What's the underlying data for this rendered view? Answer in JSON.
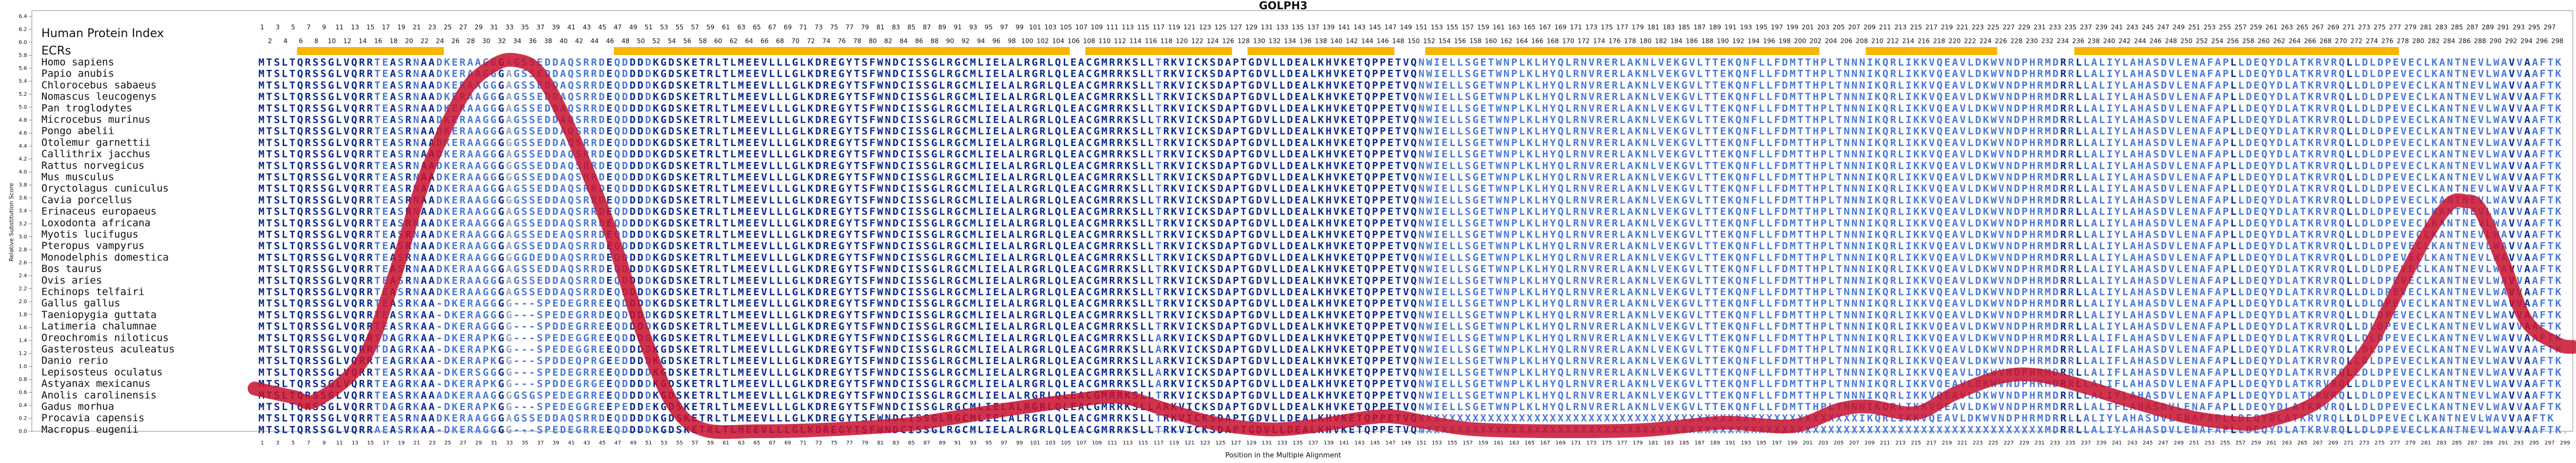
{
  "chart_data": {
    "type": "line",
    "title": "GOLPH3",
    "y_label": "Relative Substitution Score",
    "x_label": "Position in the Multiple Alignment",
    "color": "#c8102e",
    "xlim": [
      0,
      300
    ],
    "ylim": [
      0,
      6.4
    ],
    "x": [
      0,
      5,
      8,
      14,
      18,
      22,
      27,
      31,
      34,
      37,
      41,
      46,
      50,
      54,
      58,
      65,
      73,
      84,
      90,
      97,
      105,
      112,
      118,
      124,
      131,
      137,
      146,
      152,
      158,
      169,
      180,
      190,
      199,
      205,
      209,
      215,
      220,
      226,
      231,
      237,
      243,
      250,
      256,
      260,
      267,
      273,
      277,
      281,
      284,
      286,
      288,
      291,
      294,
      298,
      300
    ],
    "values": [
      0.66,
      0.53,
      0.48,
      1.1,
      2.35,
      3.9,
      5.2,
      5.65,
      5.72,
      5.5,
      4.6,
      3.1,
      1.6,
      0.45,
      0.03,
      0,
      0.02,
      0.1,
      0.2,
      0.33,
      0.46,
      0.53,
      0.33,
      0.13,
      0.03,
      0.08,
      0.23,
      0.13,
      0.03,
      0,
      0.02,
      0.13,
      0.08,
      0.33,
      0.38,
      0.28,
      0.58,
      0.84,
      0.86,
      0.68,
      0.46,
      0.23,
      0.13,
      0.15,
      0.46,
      1.2,
      2.1,
      3,
      3.5,
      3.55,
      3.42,
      2.6,
      1.7,
      1.35,
      1.3
    ],
    "yticks": [
      {
        "value": 0,
        "label": "0.0"
      },
      0.2,
      0.4,
      0.6,
      0.8,
      {
        "value": 1,
        "label": "1.0"
      },
      1.2,
      1.4,
      1.6,
      1.8,
      {
        "value": 2,
        "label": "2.0"
      },
      2.2,
      2.4,
      2.6,
      2.8,
      {
        "value": 3,
        "label": "3.0"
      },
      3.2,
      3.4,
      3.6,
      3.8,
      {
        "value": 4,
        "label": "4.0"
      },
      4.2,
      4.4,
      4.6,
      4.8,
      {
        "value": 5,
        "label": "5.0"
      },
      5.2,
      5.4,
      5.6,
      5.8,
      {
        "value": 6,
        "label": "6.0"
      },
      6.2,
      6.4
    ],
    "xticks": [
      1,
      3,
      5,
      7,
      9,
      11,
      13,
      15,
      17,
      19,
      21,
      23,
      25,
      27,
      29,
      31,
      33,
      35,
      37,
      39,
      41,
      43,
      45,
      47,
      49,
      51,
      53,
      55,
      57,
      59,
      61,
      63,
      65,
      67,
      69,
      71,
      73,
      75,
      77,
      79,
      81,
      83,
      85,
      87,
      89,
      91,
      93,
      95,
      97,
      99,
      101,
      103,
      105,
      107,
      109,
      111,
      113,
      115,
      117,
      119,
      121,
      123,
      125,
      127,
      129,
      131,
      133,
      135,
      137,
      139,
      141,
      143,
      145,
      147,
      149,
      151,
      153,
      155,
      157,
      159,
      161,
      163,
      165,
      167,
      169,
      171,
      173,
      175,
      177,
      179,
      181,
      183,
      185,
      187,
      189,
      191,
      193,
      195,
      197,
      199,
      201,
      203,
      205,
      207,
      209,
      211,
      213,
      215,
      217,
      219,
      221,
      223,
      225,
      227,
      229,
      231,
      233,
      235,
      237,
      239,
      241,
      243,
      245,
      247,
      249,
      251,
      253,
      255,
      257,
      259,
      261,
      263,
      265,
      267,
      269,
      271,
      273,
      275,
      277,
      279,
      281,
      283,
      285,
      287,
      289,
      291,
      293,
      295,
      297,
      299
    ],
    "human_index_label": "Human Protein Index",
    "human_index": [
      1,
      2,
      3,
      4,
      5,
      6,
      7,
      8,
      9,
      10,
      11,
      12,
      13,
      14,
      15,
      16,
      17,
      18,
      19,
      20,
      21,
      22,
      23,
      24,
      25,
      26,
      27,
      28,
      29,
      30,
      31,
      32,
      33,
      34,
      35,
      36,
      37,
      38,
      39,
      40,
      41,
      42,
      43,
      44,
      45,
      46,
      47,
      48,
      49,
      50,
      51,
      52,
      53,
      54,
      55,
      56,
      57,
      58,
      59,
      60,
      61,
      62,
      63,
      64,
      65,
      66,
      67,
      68,
      69,
      70,
      71,
      72,
      73,
      74,
      75,
      76,
      77,
      78,
      79,
      80,
      81,
      82,
      83,
      84,
      85,
      86,
      87,
      88,
      89,
      90,
      91,
      92,
      93,
      94,
      95,
      96,
      97,
      98,
      99,
      100,
      101,
      102,
      103,
      104,
      105,
      106,
      107,
      108,
      109,
      110,
      111,
      112,
      113,
      114,
      115,
      116,
      117,
      118,
      119,
      120,
      121,
      122,
      123,
      124,
      125,
      126,
      127,
      128,
      129,
      130,
      131,
      132,
      133,
      134,
      135,
      136,
      137,
      138,
      139,
      140,
      141,
      142,
      143,
      144,
      145,
      146,
      147,
      148,
      149,
      150,
      151,
      152,
      153,
      154,
      155,
      156,
      157,
      158,
      159,
      160,
      161,
      162,
      163,
      164,
      165,
      166,
      167,
      168,
      169,
      170,
      171,
      172,
      173,
      174,
      175,
      176,
      177,
      178,
      179,
      180,
      181,
      182,
      183,
      184,
      185,
      186,
      187,
      188,
      189,
      190,
      191,
      192,
      193,
      194,
      195,
      196,
      197,
      198,
      199,
      200,
      201,
      202,
      203,
      204,
      205,
      206,
      207,
      208,
      209,
      210,
      211,
      212,
      213,
      214,
      215,
      216,
      217,
      218,
      219,
      220,
      221,
      222,
      223,
      224,
      225,
      226,
      227,
      228,
      229,
      230,
      231,
      232,
      233,
      234,
      235,
      236,
      237,
      238,
      239,
      240,
      241,
      242,
      243,
      244,
      245,
      246,
      247,
      248,
      249,
      250,
      251,
      252,
      253,
      254,
      255,
      256,
      257,
      258,
      259,
      260,
      261,
      262,
      263,
      264,
      265,
      266,
      267,
      268,
      269,
      270,
      271,
      272,
      273,
      274,
      275,
      276,
      277,
      278,
      279,
      280,
      281,
      282,
      283,
      284,
      285,
      286,
      287,
      288,
      289,
      290,
      291,
      292,
      293,
      294,
      295,
      296,
      297,
      298
    ],
    "ecr_label": "ECRs",
    "ecr_color": "#f7b500",
    "ecrs": [
      [
        6,
        24
      ],
      [
        47,
        105
      ],
      [
        108,
        126
      ],
      [
        129,
        147
      ],
      [
        152,
        202
      ],
      [
        209,
        225
      ],
      [
        236,
        277
      ]
    ],
    "residue_colors": [
      "#0b2a8c",
      "#4a78d6",
      "#9aa4b5"
    ],
    "species": [
      "Homo sapiens",
      "Papio anubis",
      "Chlorocebus sabaeus",
      "Nomascus leucogenys",
      "Pan troglodytes",
      "Microcebus murinus",
      "Pongo abelii",
      "Otolemur garnettii",
      "Callithrix jacchus",
      "Rattus norvegicus",
      "Mus musculus",
      "Oryctolagus cuniculus",
      "Cavia porcellus",
      "Erinaceus europaeus",
      "Loxodonta africana",
      "Myotis lucifugus",
      "Pteropus vampyrus",
      "Monodelphis domestica",
      "Bos taurus",
      "Ovis aries",
      "Echinops telfairi",
      "Gallus gallus",
      "Taeniopygia guttata",
      "Latimeria chalumnae",
      "Oreochromis niloticus",
      "Gasterosteus aculeatus",
      "Danio rerio",
      "Lepisosteus oculatus",
      "Astyanax mexicanus",
      "Anolis carolinensis",
      "Gadus morhua",
      "Procavia capensis",
      "Macropus eugenii"
    ],
    "sequences": [
      "MTSLTQRSSGLVQRRTEASRNAADKERAAGGGAGSSEDDAQSRRDEQDDDDKGDSKETRLTLMEEVLLLGLKDREGYTSFWNDCISSGLRGCMLIELALRGRLQLEACGMRRKSLLTRKVICKSDAPTGDVLLDEALKHVKETQPPETVQNWIELLSGETWNPLKLHYQLRNVRERLAKNLVEKGVLTTEKQNFLLFDMTTHPLTNNNIKQRLIKKVQEAVLDKWVNDPHRMDRRLLALIYLAHASDVLENAFAPLLDEQYDLATKRVRQLLDLDPEVECLKANTNEVLWAVVAAFTK",
      "MTSLTQRSSGLVQRRTEASRNAADKERAAGGGAGSSEDDAQSRRDEQDDDDKGDSKETRLTLMEEVLLLGLKDREGYTSFWNDCISSGLRGCMLIELALRGRLQLEACGMRRKSLLTRKVICKSDAPTGDVLLDEALKHVKETQPPETVQNWIELLSGETWNPLKLHYQLRNVRERLAKNLVEKGVLTTEKQNFLLFDMTTHPLTNNNIKQRLIKKVQEAVLDKWVNDPHRMDRRLLALIYLAHASDVLENAFAPLLDEQYDLATKRVRQLLDLDPEVECLKANTNEVLWAVVAAFTK",
      "MTSLTQRSSGLVQRRTEASRNAADKERAAGGGAGSSEDDAQSRRDEQDDDDKGDSKETRLTLMEEVLLLGLKDREGYTSFWNDCISSGLRGCMLIELALRGRLQLEACGMRRKSLLTRKVICKSDAPTGDVLLDEALKHVKETQPPETVQNWIELLSGETWNPLKLHYQLRNVRERLAKNLVEKGVLTTEKQNFLLFDMTTHPLTNNNIKQRLIKKVQEAVLDKWVNDPHRMDRRLLALIYLAHASDVLENAFAPLLDEQYDLATKRVRQLLDLDPEVECLKANTNEVLWAVVAAFTK",
      "MTSLTQRSSGLVQRRTEASRNAADKERAAGGGAGSSEDDAQSRRDEQDDDDKGDSKETRLTLMEEVLLLGLKDREGYTSFWNDCISSGLRGCMLIELALRGRLQLEACGMRRKSLLTRKVICKSDAPTGDVLLDEALKHVKETQPPETVQNWIELLSGETWNPLKLHYQLRNVRERLAKNLVEKGVLTTEKQNFLLFDMTTHPLTNNNIKQRLIKKVQEAVLDKWVNDPHRMDRRLLALIYLAHASDVLENAFAPLLDEQYDLATKRVRQLLDLDPEVECLKANTNEVLWAVVAAFTK",
      "MTSLTQRSSGLVQRRTEASRNAADKERAAGGGAGSSEDDAQSRRDEQDDDDKGDSKETRLTLMEEVLLLGLKDREGYTSFWNDCISSGLRGCMLIELALRGRLQLEACGMRRKSLLTRKVICKSDAPTGDVLLDEALKHVKETQPPETVQNWIELLSGETWNPLKLHYQLRNVRERLAKNLVEKGVLTTEKQNFLLFDMTTHPLTNNNIKQRLIKKVQEAVLDKWVNDPHRMDRRLLALIYLAHASDVLENAFAPLLDEQYDLATKRVRQLLDLDPEVECLKANTNEVLWAVVAAFTK",
      "MTSLTQRSSGLVQRRTEASRNAADKERAAGGGAGSSEDDAQSRRDEQDDDDKGDSKETRLTLMEEVLLLGLKDREGYTSFWNDCISSGLRGCMLIELALRGRLQLEACGMRRKSLLTRKVICKSDAPTGDVLLDEALKHVKETQPPETVQNWIELLSGETWNPLKLHYQLRNVRERLAKNLVEKGVLTTEKQNFLLFDMTTHPLTNNNIKQRLIKKVQEAVLDKWVNDPHRMDRRLLALIYLAHASDVLENAFAPLLDEQYDLATKRVRQLLDLDPEVECLKANTNEVLWAVVAAFTK",
      "MTSLTQRSSGLVQRRTEASRNAADKERAAGGGAGSSEDDAQSRRDEQDDDDKGDSKETRLTLMEEVLLLGLKDREGYTSFWNDCISSGLRGCMLIELALRGRLQLEACGMRRKSLLTRKVICKSDAPTGDVLLDEALKHVKETQPPETVQNWIELLSGETWNPLKLHYQLRNVRERLAKNLVEKGVLTTEKQNFLLFDMTTHPLTNNNIKQRLIKKVQEAVLDKWVNDPHRMDRRLLALIYLAHASDVLENAFAPLLDEQYDLATKRVRQLLDLDPEVECLKANTNEVLWAVVAAFTK",
      "MTSLTQRSSGLVQRRTEASRNAADKERAAGGGGGSSEDDAQSRRDEQDDDDKGDSKETRLTLMEEVLLLGLKDREGYTSFWNDCISSGLRGCMLIELALRGRLQLEACGMRRKSLLTRKVICKSDAPTGDVLLDEALKHVKETQPPETVQNWIELLSGETWNPLKLHYQLRNVRERLAKNLVEKGVLTTEKQNFLLFDMTTHPLTNNNIKQRLIKKVQEAVLDKWVNDPHRMDRRLLALIYLAHASDVLENAFAPLLDEQYDLATKRVRQLLDLDPEVECLKANTNEVLWAVVAAFTK",
      "MTSLTQRSSGLVQRRTEASRNAADKERAAGGGAGSSEDDAQSRRDEQDDDDKGDSKETRLTLMEEVLLLGLKDREGYTSFWNDCISSGLRGCMLIELALRGRLQLEACGMRRKSLLTRKVICKSDAPTGDVLLDEALKHVKETQPPETVQNWIELLSGETWNPLKLHYQLRNVRERLAKNLVEKGVLTTEKQNFLLFDMTTHPLTNNNIKQRLIKKVQEAVLDKWVNDPHRMDRRLLALIYLAHASDVLENAFAPLLDEQYDLATKRVRQLLDLDPEVECLKANTNEVLWAVVAAFTK",
      "MTSLTQRSSGLVQRRTEASRNAADKERAAGGGGGSSEDDAQSRRDEQDDDDKGDSKETRLTLMEEVLLLGLKDREGYTSFWNDCISSGLRGCMLIELALRGRLQLEACGMRRKSLLTRKVICKSDAPTGDVLLDEALKHVKETQPPETVQNWIELLSGETWNPLKLHYQLRNVRERLAKNLVEKGVLTTEKQNFLLFDMTTHPLTNNNIKQRLIKKVQEAVLDKWVNDPHRMDRRLLALIYLAHASDVLENAFAPLLDEQYDLATKRVRQLLDLDPEVECLKANTNEVLWAVVAAFTK",
      "MTSLTQRSSGLVQRRTEASRNAADKERAAGGGGGSSEDDAQSRRDEQDDDDKGDSKETRLTLMEEVLLLGLKDREGYTSFWNDCISSGLRGCMLIELALRGRLQLEACGMRRKSLLTRKVICKSDAPTGDVLLDEALKHVKETQPPETVQNWIELLSGETWNPLKLHYQLRNVRERLAKNLVEKGVLTTEKQNFLLFDMTTHPLTNNNIKQRLIKKVQEAVLDKWVNDPHRMDRRLLALIYLAHASDVLENAFAPLLDEQYDLATKRVRQLLDLDPEVECLKANTNEVLWAVVAAFTK",
      "MTSLTQRSSGLVQRRTEASRNAADKERAAGGGAGSSEDDAQSRRDEQDDDDKGDSKETRLTLMEEVLLLGLKDREGYTSFWNDCISSGLRGCMLIELALRGRLQLEACGMRRKSLLTRKVICKSDAPTGDVLLDEALKHVKETQPPETVQNWIELLSGETWNPLKLHYQLRNVRERLAKNLVEKGVLTTEKQNFLLFDMTTHPLTNNNIKQRLIKKVQEAVLDKWVNDPHRMDRRLLALIYLAHASDVLENAFAPLLDEQYDLATKRVRQLLDLDPEVECLKANTNEVLWAVVAAFTK",
      "MTSLTQRSSGLVQRRTEASRNAADKERAAGGGGGSSEDDAQSRRDEQDDDDKGDSKETRLTLMEEVLLLGLKDREGYTSFWNDCISSGLRGCMLIELALRGRLQLEACGMRRKSLLTRKVICKSDAPTGDVLLDEALKHVKETQPPETVQNWIELLSGETWNPLKLHYQLRNVRERLAKNLVEKGVLTTEKQNFLLFDMTTHPLTNNNIKQRLIKKVQEAVLDKWVNDPHRMDRRLLALIYLAHASDVLENAFAPLLDEQYDLATKRVRQLLDLDPEVECLKANTNEVLWAVVAAFTK",
      "MTSLTQRSSGLVQRRTEASRNAADKERAAGGGAGSSEDDAQSRRDEQDDDDKGDSKETRLTLMEEVLLLGLKDREGYTSFWNDCISSGLRGCMLIELALRGRLQLEACGMRRKSLLTRKVICKSDAPTGDVLLDEALKHVKETQPPETVQNWIELLSGETWNPLKLHYQLRNVRERLAKNLVEKGVLTTEKQNFLLFDMTTHPLTNNNIKQRLIKKVQEAVLDKWVNDPHRMDRRLLALIYLAHASDVLENAFAPLLDEQYDLATKRVRQLLDLDPEVECLKANTNEVLWAVVAAFTK",
      "MTSLTQRSSGLVQRRTEASRNAADKERAAGGGAGSSEDDAQSRRDEQDDDDKGDSKETRLTLMEEVLLLGLKDREGYTSFWNDCISSGLRGCMLIELALRGRLQLEACGMRRKSLLTRKVICKSDAPTGDVLLDEALKHVKETQPPETVQNWIELLSGETWNPLKLHYQLRNVRERLAKNLVEKGVLTTEKQNFLLFDMTTHPLTNNNIKQRLIKKVQEAVLDKWVNDPHRMDRRLLALIYLAHASDVLENAFAPLLDEQYDLATKRVRQLLDLDPEVECLKANTNEVLWAVVAAFTK",
      "MTSLTQRSSGLVQRRTEASRNAADKERAAGGGAGSSEDEAQSRRDEQDDDDKGDSKETRLTLMEEVLLLGLKDREGYTSFWNDCISSGLRGCMLIELALRGRLQLEACGMRRKSLLTRKVICKSDAPTGDVLLDEALKHVKETQPPETVQNWIELLSGETWNPLKLHYQLRNVRERLAKNLVEKGVLTTEKQNFLLFDMTTHPLTNNNIKQRLIKKVQEAVLDKWVNDPHRMDRRLLALIYLAHASDVLENAFAPLLDEQYDLATKRVRQLLDLDPEVECLKANTNEVLWAVVAAFTK",
      "MTSLTQRSSGLVQRRTEASRNAADKERAAGGGAGSSEDDAQSRRDEQDDDDKGDSKETRLTLMEEVLLLGLKDREGYTSFWNDCISSGLRGCMLIELALRGRLQLEACGMRRKSLLTRKVICKSDAPTGDVLLDEALKHVKETQPPETVQNWIELLSGETWNPLKLHYQLRNVRERLAKNLVEKGVLTTEKQNFLLFDMTTHPLTNNNIKQRLIKKVQEAVLDKWVNDPHRMDRRLLALIYLAHASDVLENAFAPLLDEQYDLATKRVRQLLDLDPEVECLKANTNEVLWAVVAAFTK",
      "MTSLTQRSSGLVQRRTEASRNAADKERAAGGGGGGDEDDAQSRRDEQDDDDKGDSKETRLTLMEEVLLLGLKDREGYTSFWNDCISSGLRGCMLIELALRGRLQLEACGMRRKSLLTRKVICKSDAPTGDVLLDEALKHVKETQPPETVQNWIELLSGETWNPLKLHYQLRNVRERLAKNLVEKGVLTTEKQNFLLFDMTTHPLTNNNIKQRLIKKVQEAVLDKWVNDPHRMDRRLLALIYLAHASDVLENAFAPLLDEQYDLATKRVRQLLDLDPEVECLKANTNEVLWAVVAAFTK",
      "MTSLTQRSSGLVQRRTEASRNAADKERAAGGGAGSSEDDAQSRRDEQDDDDKGDSKETRLTLMEEVLLLGLKDREGYTSFWNDCISSGLRGCMLIELALRGRLQLEACGMRRKSLLTRKVICKSDAPTGDVLLDEALKHVKETQPPETVQNWIELLSGETWNPLKLHYQLRNVRERLAKNLVEKGVLTTEKQNFLLFDMTTHPLTNNNIKQRLIKKVQEAVLDKWVNDPHRMDRRLLALIYLAHASDVLENAFAPLLDEQYDLATKRVRQLLDLDPEVECLKANTNEVLWAVVAAFTK",
      "MTSLTQRSSGLVQRRTEASRNAADKERAAGGGAGSSEDDAQSRRDEQDDDDKGDSKETRLTLMEEVLLLGLKDREGYTSFWNDCISSGLRGCMLIELALRGRLQLEACGMRRKSLLTRKVICKSDAPTGDVLLDEALKHVKETQPPETVQNWIELLSGETWNPLKLHYQLRNVRERLAKNLVEKGVLTTEKQNFLLFDMTTHPLTNNNIKQRLIKKVQEAVLDKWVNDPHRMDRRLLALIYLAHASDVLENAFAPLLDEQYDLATKRVRQLLDLDPEVECLKANTNEVLWAVVAAFTK",
      "MTSLTQRSSGLVQRRTEASRNAADKERAAGGGAGSSEDDAQSRRDEQDDDDKGDSKETRLTLMEEVLLLGLKDREGYTSFWNDCISSGLRGCMLIELALRGRLQLEACGMRRKSLLTRKVICKSDAPTGDVLLDEALKHVKETQPPETVQNWIELLSGETWNPLKLHYQLRNVRERLAKNLVEKGVLTTEKQNFLLFDMTTHPLTNNNIKQRLIKKVQEAVLDKWVNDPHRMDRRLLALIYLAHASDVLENAFAPLLDEQYDLATKRVRQLLDLDPEVECLKANTNEVLWAVVAAFTK",
      "MTSLTQRSSGLVQRRTEASRKAA-DKERAGGGG---SPEDEGRREEQDDDDKGDSKETRLTLMEEVLLLGLKDREGYTSFWNDCISSGLRGCMLIELALRGRLQLEACGMRRKSLLTRKVICKSDAPTGDVLLDEALKHVKETQPPETVQNWIELLSGETWNPLKLHYQLRNVRERLAKNLVEKGVLTTEKQNFLLFDMTTHPLTNNNIKQRLIKKVQEAVLDKWVNDPHRMDRRLLALIYLAHASDVLENAFAPLLDEQYDLATKRVRQLLDLDPEVECLKANTNEVLWAVVAAFTK",
      "MTSLTQRSSGLVQRRTEASRKAA-DKERAGGGG---SPEDEGRRDEQDDDDKGDSKETRLTLMEEVLLLGLKDREGYTSFWNDCISSGLRGCMLIELALRGRLQLEACGMRRKSLLTRKVICKSDAPTGDVLLDEALKHVKETQPPETVQNWIELLSGETWNPLKLHYQLRNVRERLAKNLVEKGVLTTEKQNFLLFDMTTHPLTNNNIKQRLIKKVQEAVLDKWVNDPHRMDRRLLALIYLAHASDVLENAFAPLLDEQYDLATKRVRQLLDLDPEVECLKANTNEVLWAVVAAFTK",
      "MTSLTQRSSGLVQRRTEASRKAA-DKERAGGGG---SPDDEGRREEQDDDDKGDSKETRLTLMEEVLLLGLKDREGYTSFWNDCISSGLRGCMLIELALRGRLQLEACGMRRKSLLTRKVICKSDAPTGDVLLDEALKHVKETQPPETVQNWIELLSGETWNPLKLHYQLRNVRERLAKNLVEKGVLTTEKQNFLLFDMTTHPLTNNNIKQRLIKKVQEAVLDKWVNDPHRMDRRLLALIYLAHASDVLENAFAPLLDEQYDLATKRVRQLLDLDPEVECLKANTNEVLWAVVAAFTK",
      "MTSLTQRSSGLVQRRTDAGRKAA-DKERAPKGG---SPEDEGGREEQDDDDKGDSKETRLTLMEEVLLLGLKDREGYTSFWNDCISSGLRGCMLIELALRGRLQLEACGMRRKSLLARKVICKSDAPTGDVLLDEALKHVKETQPPETVQNWIELLSGETWNPLKLHYQLRNVRERLAKNLVEKGVLTTEKQNFLLFDMTTHPLTNNNIKQRLIKKVQEAVLDKWVNDPHRMDRRLLALIFLAHASDVLENAFAPLLDEQYDLATKRVRQLLDLDPEVECLKANTNEVLWAVVAAFTK",
      "MTSLTQRSSGLVQRRTDAGRKAA-DKERAPKGG---SPEDEGGREEQDDDDKGDSKETRLTLMEEVLLLGLKDREGYTSFWNDCISSGLRGCMLIELALRGRLQLEACGMRRKSLLARKVICKSDAPTGDVLLDEALKHVKETQPPETVQNWIELLSGETWNPLKLHYQLRNVRERLAKNLVEKGVLTTEKQNFLLFDMTTHPLTNNNIKQRLIKKVQEAVLDKWVNDPHRMDRRLLALIFLAHASDVLENAFAPLLDEQYDLATKRVRQLLDLDPEVECLKANTNEVLWAVVAAFTK",
      "MTSLTQRSSGLVQRRTEAGRKAA-DKERAPKGG---SPDDEQPRGEEDDDDKGDSKETRLTLMEEVLLLGLKDREGYTSFWNDCISSGLRGCMLIELALRGRLQLEACGMRRKSLLARKVICKSDAPTGDVLLDEALKHVKETQPPETVQNWIELLSGETWNPLKLHYQLRNVRERLAKNLVEKGVLTTEKQNFLLFDMTTHPLTNNNIKQRLIKKVQEAVLDKWVNDPHRMDRRLLALIFLAHASDVLENAFAPLLDEQYDLATKRVRQLLDLDPEVECLKANTNEVLWAVVAAFTK",
      "MTSLTQRSSGLVQRRTEASRKAA-DKERSGGGG---SPEDEGRREEQDDDDKGDSKETRLTLMEEVLLLGLKDREGYTSFWNDCISSGLRGCMLIELALRGRLQLEACGMRRKSLLARKVICKSDAPTGDVLLDEALKHVKETQPPETVQNWIELLSGETWNPLKLHYQLRNVRERLAKNLVEKGVLTTEKQNFLLFDMTTHPLTNNNIKQRLIKKVQEAVLDKWVNDPHRMDRRLLALIFLAHASDVLENAFAPLLDEQYDLATKRVRQLLDLDPEVECLKANTNEVLWAVVAAFTK",
      "MTSLTQRSSGLVQRRTEAGRKAA-DKERAPKGG---SPDDEGRGEEQDDDDKGDSKETRLTLMEEVLLLGLKDREGYTSFWNDCISSGLRGCMLIELALRGRLQLEACGMRRKSLLARKVICKSDAPTGDVLLDEALKHVKETQPPETVQNWIELLSGETWNPLKLHYQLRNVRERLAKNLVEKGVLTTEKQNFLLFDMTTHPLTNNNIKQRLIKKVQEAVLDKWVNDPHRMDRRLLALIFLAHASDVLENAFAPLLDEQYDLATKRVRQLLDLDPEVECLKANTNEVLWAVVAAFTK",
      "MTSLTQRSSGLVQRRTEASRKAAADKERAAGGGGSGSPEDEGRREEQDDDDKGDSKETRLTLMEEVLLLGLKDREGYTSFWNDCISSGLRGCMLIELALRGRLQLEACGMRRKSLLTRKVICKSDAPTGDVLLDEALKHVKETQPPETVQNWIELLSGETWNPLKLHYQLRNVRERLAKNLVEKGVLTTEKQNFLLFDMTTHPLTNNNIKQRLIKKVQEAVLDKWVNDPHRMDRRLLALIYLAHASDVLENAFAPLLDEQYDLATKRVRQLLDLDPEVECLKANTNEVLWAVVAAFTK",
      "MTSLTQRSSGLVQRRTDAGRKAA-DKERAPKGG---SPEDEGGREEPEDDEKGDSKETRLTLMEEVLLLGLKDREGYTSFWNDCISSGLRGCMLIELALRGRLQLEACGMRRKSLLARKVICKSDAPTGDVLLDEALKHVKETQPPETVQNWIELLSGETWNPLKLHYQLRNVRERLAKNLVEKGVLTTEKQNFLLFDMTTHPLTNNNIKQRLIKKVQEAVLDKWVNDPHRMDRRLLALIFLAHASDVLENAFAPLLDEQYDLATKRVRQLLDLDPEVECLKANTNEVLWAVVAAFTK",
      "MTSLTQRSSGLVQRRTEASRNAADKERAAGGGAGSSEDDAQSRRDEQDDDDKGDSKETRLTLMEEVLLLGLKDREGYTSFWNDCISSGLRGCMLIELALRGRLQLEACGMRRKSLLTRKVICKSDAPTGDVLLDEALKHVKETQPPETVQXXXXXXXXXXXXXXXXXXXXXXXXXXXXXXXXXXXXXXXXXXXXXXXXXXXXXXXXXIKQRLIKKVQEAVLDKWVNDPHRMDRRLLALIYLAHASDVLENAFAPLLDEQYDLATKRVRQLLDLDPEVECLKANTNEVLWAVVAAFTK",
      "MTSLTQRSSGLVQRRAEASRKAA-DKERAGGGG---SPEDEGRREEQDDDDKGDSKETRLTLMEEVLLLGLKDREGYTSFWNDCISSGLRGCMLIELALRGRLQLEACGMRRKSLLTRKVICKSDAPTGDVLLDEALKHVKETQPPETVQNXXXXXXXXXXXXXXXXXXXXXXXXXXXXXXXXXXXXXXXXXXXXXXXXXXXXXXXXXXXXXXXXXXXXXXXXXXXXXXXXMDRRLLALIYLAHASDVLENAFAPLLDEQYDLATKRVRQLLDLDPEVECLKANTNEVLWAVVAAFTK"
    ]
  }
}
